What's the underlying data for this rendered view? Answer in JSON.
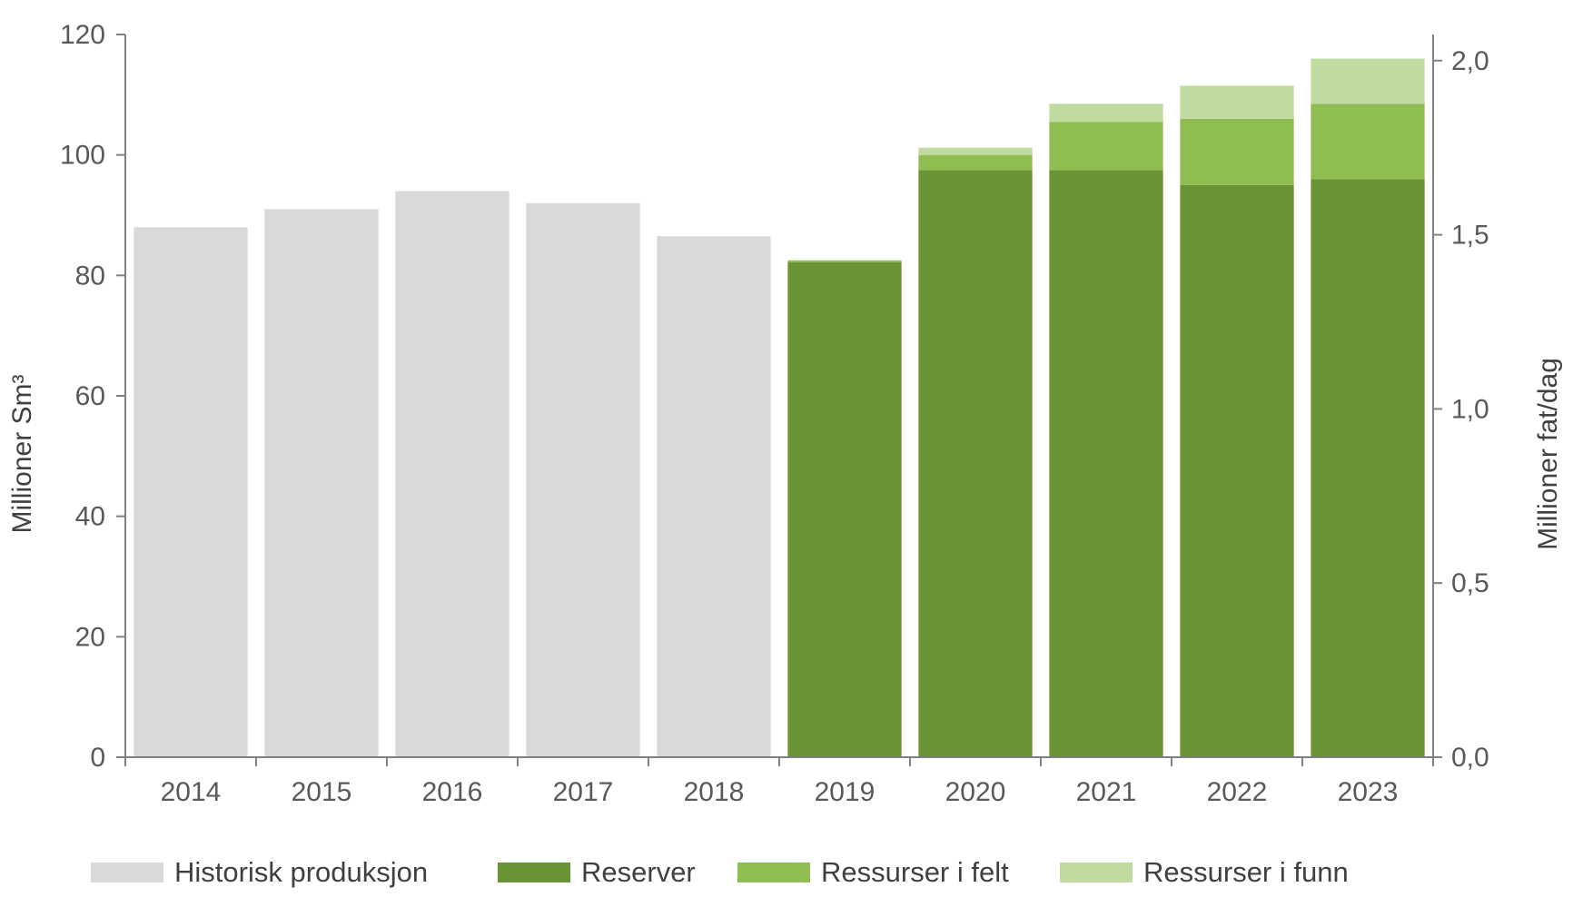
{
  "chart_data": {
    "type": "bar",
    "stacked": true,
    "categories": [
      "2014",
      "2015",
      "2016",
      "2017",
      "2018",
      "2019",
      "2020",
      "2021",
      "2022",
      "2023"
    ],
    "series": [
      {
        "name": "Historisk produksjon",
        "color": "#d9d9d9",
        "values": [
          88,
          91,
          94,
          92,
          86.5,
          0,
          0,
          0,
          0,
          0
        ]
      },
      {
        "name": "Reserver",
        "color": "#6a9433",
        "values": [
          0,
          0,
          0,
          0,
          0,
          82.2,
          97.5,
          97.5,
          95,
          96
        ]
      },
      {
        "name": "Ressurser i felt",
        "color": "#8fbd52",
        "values": [
          0,
          0,
          0,
          0,
          0,
          0.3,
          2.5,
          8,
          11,
          12.5
        ]
      },
      {
        "name": "Ressurser i funn",
        "color": "#c0dba0",
        "values": [
          0,
          0,
          0,
          0,
          0,
          0,
          1.2,
          3,
          5.5,
          7.5
        ]
      }
    ],
    "ylabel": "Millioner  Sm³",
    "y2label": "Millioner fat/dag",
    "ylim": [
      0,
      120
    ],
    "y2lim": [
      0,
      2.075
    ],
    "yticks": [
      "0",
      "20",
      "40",
      "60",
      "80",
      "100",
      "120"
    ],
    "y2ticks": [
      "0,0",
      "0,5",
      "1,0",
      "1,5",
      "2,0"
    ],
    "y2tick_values": [
      0,
      0.5,
      1.0,
      1.5,
      2.0
    ],
    "grid": false,
    "legend": "bottom"
  }
}
